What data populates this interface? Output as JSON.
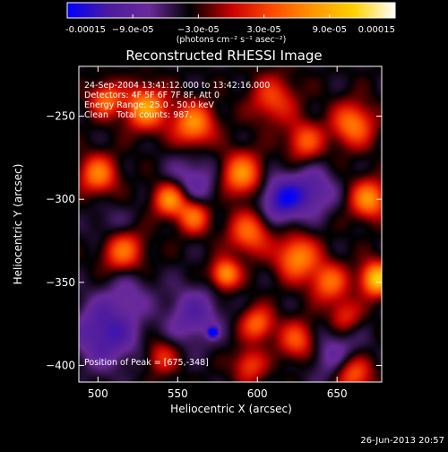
{
  "chart_data": {
    "type": "heatmap",
    "title": "Reconstructed RHESSI Image",
    "xlabel": "Heliocentric X (arcsec)",
    "ylabel": "Heliocentric Y (arcsec)",
    "xlim": [
      488,
      678
    ],
    "ylim": [
      -410,
      -220
    ],
    "x_ticks": [
      500,
      550,
      600,
      650
    ],
    "y_ticks": [
      -250,
      -300,
      -350,
      -400
    ],
    "x_tick_labels": [
      "500",
      "550",
      "600",
      "650"
    ],
    "y_tick_labels": [
      "−250",
      "−300",
      "−350",
      "−400"
    ],
    "colorbar": {
      "min": -0.00015,
      "max": 0.00015,
      "tick_values": [
        -0.00015,
        -9e-05,
        -3e-05,
        3e-05,
        9e-05,
        0.00015
      ],
      "tick_labels": [
        "-0.00015",
        "−9.0e-05",
        "−3.0e-05",
        "3.0e-05",
        "9.0e-05",
        "0.00015"
      ],
      "unit_label": "(photons cm⁻² s⁻¹ asec⁻²)",
      "colors": [
        "#0000ff",
        "#4b1aa0",
        "#6a2a9a",
        "#000000",
        "#c80000",
        "#ff4a00",
        "#ff9600",
        "#ffd200",
        "#ffffff"
      ]
    },
    "annotations": {
      "time_range": "24-Sep-2004 13:41:12.000 to 13:42:16.000",
      "detectors": "Detectors: 4F 5F 6F 7F 8F, Att 0",
      "energy": "Energy Range: 25.0 - 50.0 keV",
      "clean": "Clean   Total counts: 987.",
      "peak": "Position of Peak = [675,-348]"
    },
    "peak": [
      675,
      -348
    ],
    "features": [
      {
        "x": 572,
        "y": -380,
        "value": -0.00015,
        "sigma": 2
      },
      {
        "x": 560,
        "y": -370,
        "value": -6e-05,
        "sigma": 12
      },
      {
        "x": 505,
        "y": -380,
        "value": -8e-05,
        "sigma": 14
      },
      {
        "x": 650,
        "y": -395,
        "value": -5e-05,
        "sigma": 12
      },
      {
        "x": 615,
        "y": -300,
        "value": -9e-05,
        "sigma": 10
      },
      {
        "x": 635,
        "y": -295,
        "value": -6e-05,
        "sigma": 10
      },
      {
        "x": 560,
        "y": -290,
        "value": -5e-05,
        "sigma": 12
      },
      {
        "x": 510,
        "y": -320,
        "value": -4e-05,
        "sigma": 10
      },
      {
        "x": 520,
        "y": -355,
        "value": -3e-05,
        "sigma": 10
      },
      {
        "x": 515,
        "y": -330,
        "value": 0.00011,
        "sigma": 9
      },
      {
        "x": 500,
        "y": -285,
        "value": 0.0001,
        "sigma": 8
      },
      {
        "x": 530,
        "y": -245,
        "value": 0.00012,
        "sigma": 9
      },
      {
        "x": 560,
        "y": -255,
        "value": 0.00011,
        "sigma": 9
      },
      {
        "x": 505,
        "y": -240,
        "value": 9e-05,
        "sigma": 7
      },
      {
        "x": 545,
        "y": -300,
        "value": 0.00012,
        "sigma": 7
      },
      {
        "x": 560,
        "y": -310,
        "value": 0.0001,
        "sigma": 7
      },
      {
        "x": 590,
        "y": -285,
        "value": 0.00011,
        "sigma": 9
      },
      {
        "x": 595,
        "y": -320,
        "value": 9e-05,
        "sigma": 9
      },
      {
        "x": 625,
        "y": -335,
        "value": 0.00011,
        "sigma": 9
      },
      {
        "x": 645,
        "y": -350,
        "value": 9e-05,
        "sigma": 8
      },
      {
        "x": 675,
        "y": -348,
        "value": 0.00015,
        "sigma": 7
      },
      {
        "x": 670,
        "y": -300,
        "value": 0.00011,
        "sigma": 8
      },
      {
        "x": 660,
        "y": -255,
        "value": 0.0001,
        "sigma": 9
      },
      {
        "x": 610,
        "y": -240,
        "value": 7e-05,
        "sigma": 10
      },
      {
        "x": 630,
        "y": -265,
        "value": 8e-05,
        "sigma": 8
      },
      {
        "x": 580,
        "y": -345,
        "value": 0.00012,
        "sigma": 6
      },
      {
        "x": 600,
        "y": -375,
        "value": 9e-05,
        "sigma": 7
      },
      {
        "x": 625,
        "y": -385,
        "value": 8e-05,
        "sigma": 8
      },
      {
        "x": 660,
        "y": -405,
        "value": 0.0001,
        "sigma": 8
      },
      {
        "x": 655,
        "y": -370,
        "value": 6e-05,
        "sigma": 7
      },
      {
        "x": 540,
        "y": -395,
        "value": 6e-05,
        "sigma": 7
      },
      {
        "x": 595,
        "y": -400,
        "value": 7e-05,
        "sigma": 7
      }
    ]
  },
  "footer": {
    "timestamp": "26-Jun-2013 20:57"
  }
}
